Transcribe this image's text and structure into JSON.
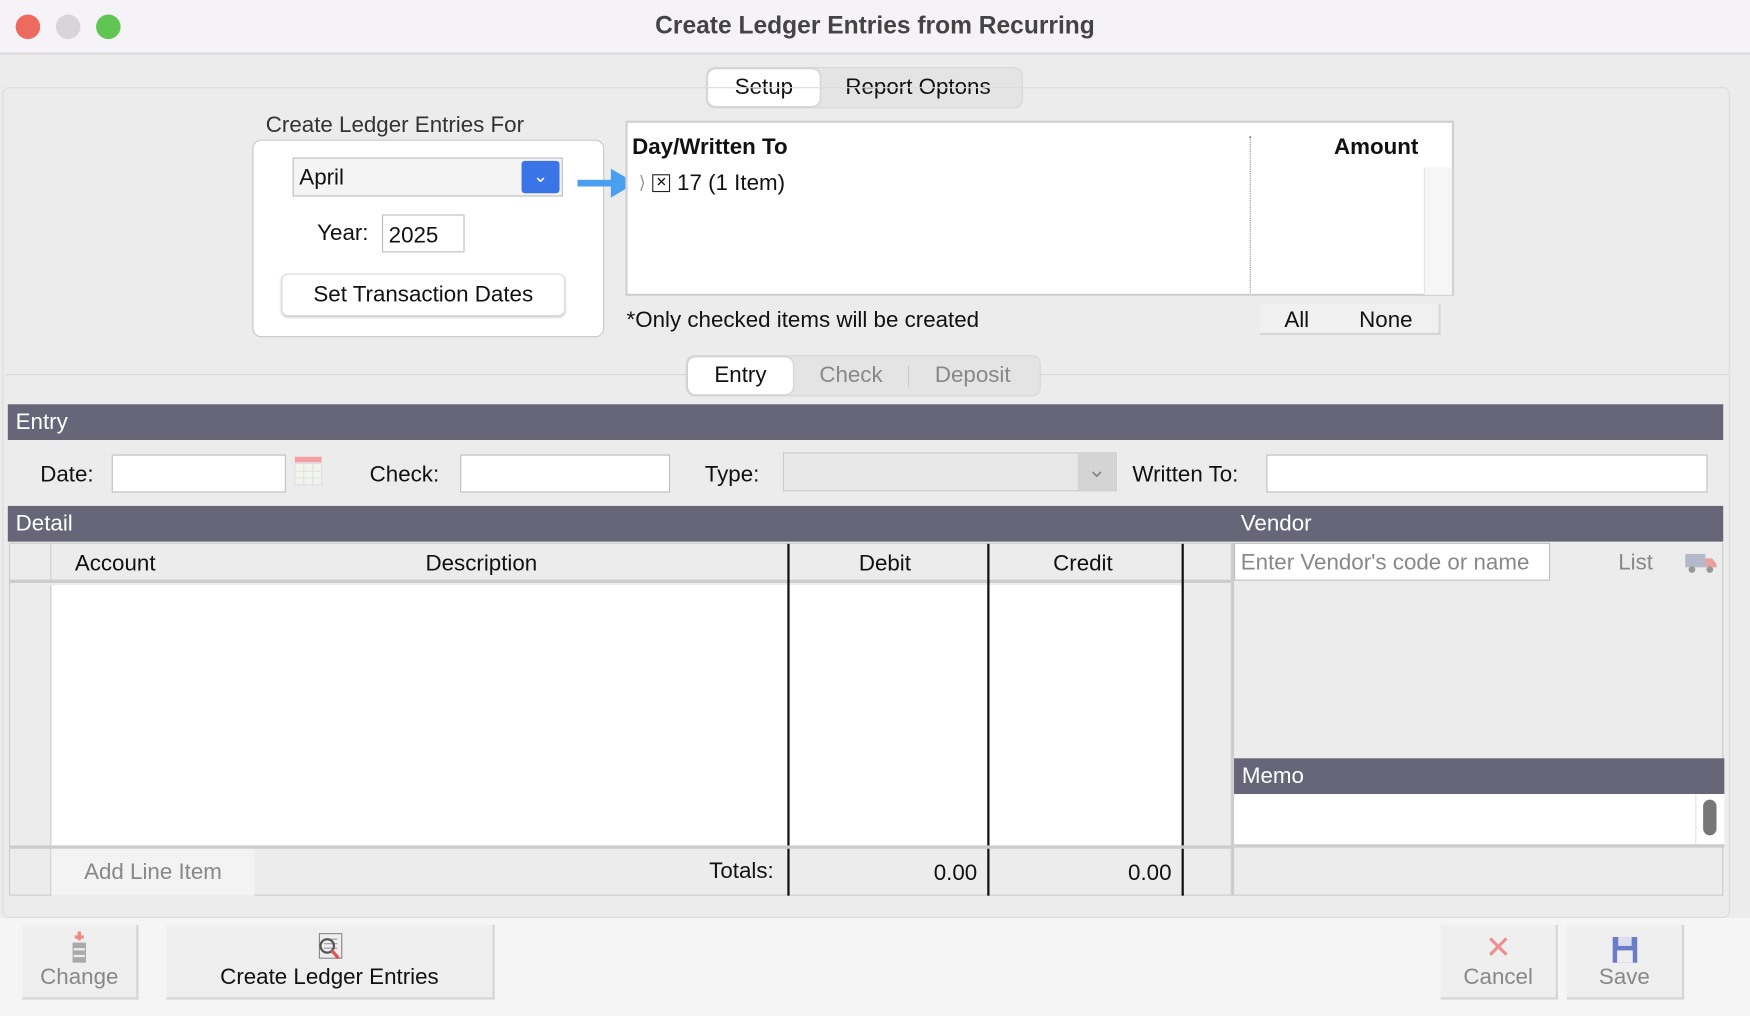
{
  "window": {
    "title": "Create Ledger Entries from Recurring"
  },
  "top_tabs": [
    {
      "label": "Setup",
      "active": true
    },
    {
      "label": "Report Optons",
      "active": false
    }
  ],
  "setup": {
    "group_label": "Create Ledger Entries For",
    "month": "April",
    "year_label": "Year:",
    "year": "2025",
    "set_dates_button": "Set Transaction Dates"
  },
  "recurring_list": {
    "col_day": "Day/Written To",
    "col_amount": "Amount",
    "rows": [
      {
        "label": "17 (1 Item)",
        "checked": false,
        "expanded": false
      }
    ],
    "note": "*Only checked items will be created",
    "all_button": "All",
    "none_button": "None"
  },
  "entry_tabs": [
    {
      "label": "Entry",
      "active": true
    },
    {
      "label": "Check",
      "active": false
    },
    {
      "label": "Deposit",
      "active": false
    }
  ],
  "entry": {
    "header": "Entry",
    "date_label": "Date:",
    "date_value": "",
    "check_label": "Check:",
    "check_value": "",
    "type_label": "Type:",
    "type_value": "",
    "written_to_label": "Written To:",
    "written_to_value": ""
  },
  "detail": {
    "header": "Detail",
    "columns": [
      "Account",
      "Description",
      "Debit",
      "Credit"
    ],
    "rows": [],
    "add_line_item": "Add Line Item",
    "totals_label": "Totals:",
    "total_debit": "0.00",
    "total_credit": "0.00"
  },
  "vendor": {
    "header": "Vendor",
    "placeholder": "Enter Vendor's code or name",
    "list_button": "List"
  },
  "memo": {
    "header": "Memo",
    "value": ""
  },
  "toolbar": {
    "change": "Change",
    "create": "Create Ledger Entries",
    "cancel": "Cancel",
    "save": "Save"
  },
  "colors": {
    "section_bar": "#676679",
    "accent": "#3b82f6",
    "arrow": "#4a9ff0"
  }
}
